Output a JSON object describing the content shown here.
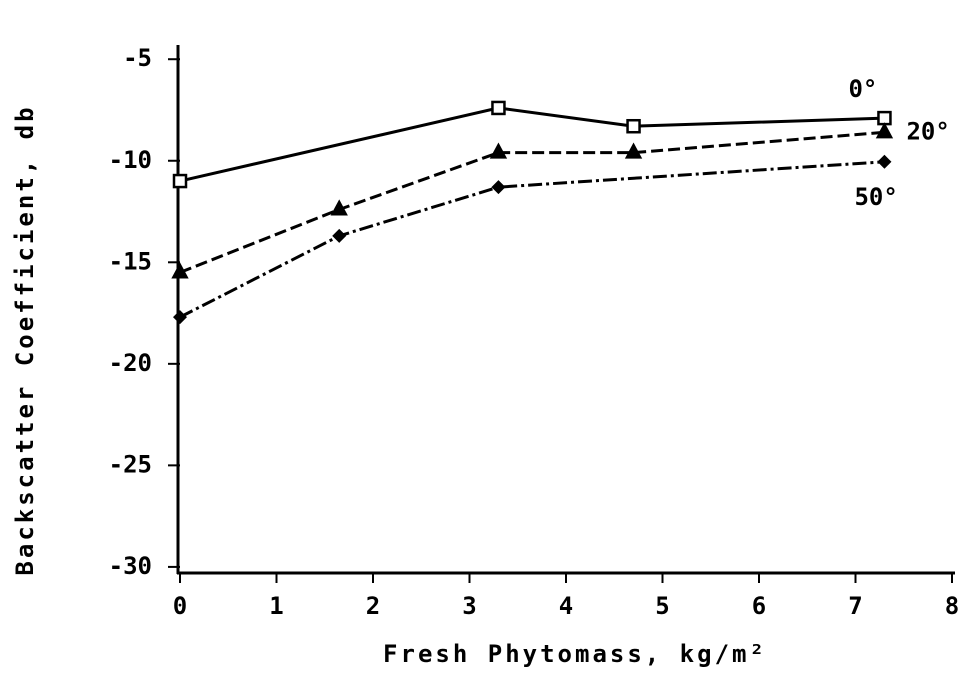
{
  "chart_data": {
    "type": "line",
    "x_label": "Fresh Phytomass, kg/m²",
    "y_label": "Backscatter Coefficient, db",
    "xlim": [
      0,
      8
    ],
    "xticks": [
      0,
      1,
      2,
      3,
      4,
      5,
      6,
      7,
      8
    ],
    "ylim": [
      -30.3,
      -4.3
    ],
    "yticks": [
      -5,
      -10,
      -15,
      -20,
      -25,
      -30
    ],
    "series": [
      {
        "name": "0°",
        "color": "#000000",
        "marker": "square",
        "dash": "solid",
        "x": [
          0,
          3.3,
          4.7,
          7.3
        ],
        "values": [
          -11.0,
          -7.4,
          -8.3,
          -7.9
        ]
      },
      {
        "name": "20°",
        "color": "#000000",
        "marker": "triangle",
        "dash": "dashed",
        "x": [
          0,
          1.65,
          3.3,
          4.7,
          7.3
        ],
        "values": [
          -15.5,
          -12.4,
          -9.6,
          -9.6,
          -8.6
        ]
      },
      {
        "name": "50°",
        "color": "#000000",
        "marker": "diamond",
        "dash": "dashdot",
        "x": [
          0,
          1.65,
          3.3,
          7.3
        ],
        "values": [
          -17.7,
          -13.7,
          -11.3,
          -10.05
        ]
      }
    ]
  }
}
